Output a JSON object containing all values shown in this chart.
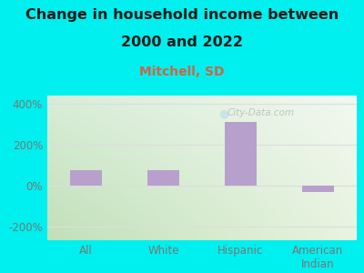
{
  "title_line1": "Change in household income between",
  "title_line2": "2000 and 2022",
  "subtitle": "Mitchell, SD",
  "categories": [
    "All",
    "White",
    "Hispanic",
    "American\nIndian"
  ],
  "values": [
    75,
    75,
    310,
    -30
  ],
  "bar_color": "#b8a0cc",
  "bg_color": "#00efef",
  "plot_bg_topleft": "#d8edd8",
  "plot_bg_topright": "#f0f8f0",
  "plot_bg_bottomleft": "#c8e8c0",
  "plot_bg_bottomright": "#e8f4e0",
  "title_color": "#1a1a1a",
  "subtitle_color": "#cc6644",
  "axis_label_color": "#777777",
  "grid_color": "#dddddd",
  "yticks": [
    -200,
    0,
    200,
    400
  ],
  "ylim": [
    -265,
    440
  ],
  "watermark": "City-Data.com",
  "title_fontsize": 11.5,
  "subtitle_fontsize": 10
}
